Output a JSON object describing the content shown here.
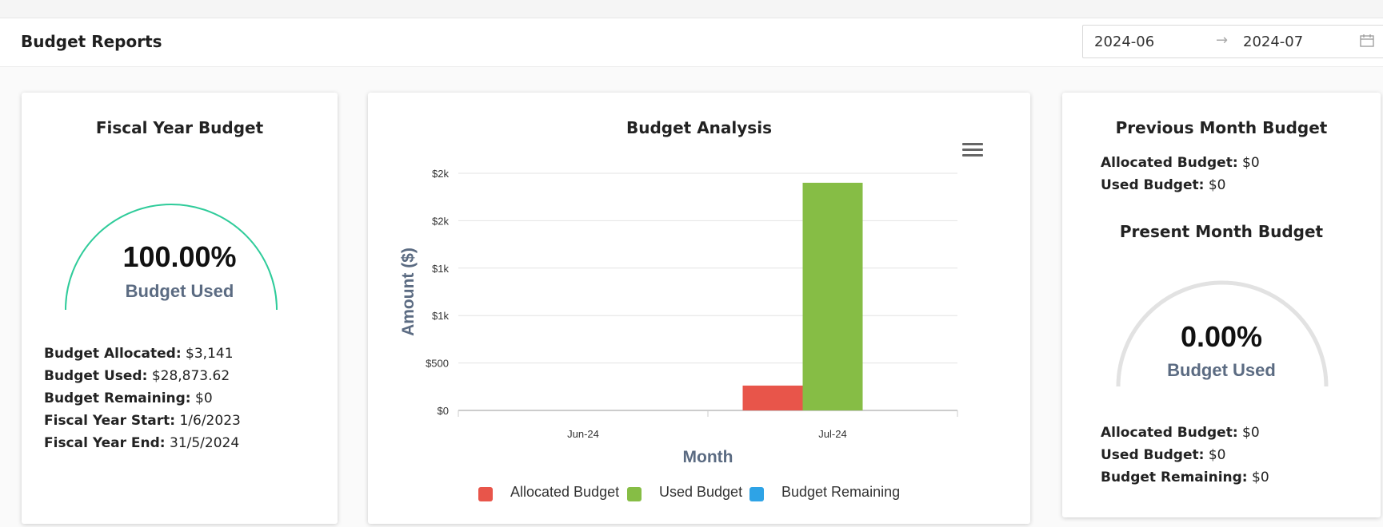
{
  "header": {
    "title": "Budget Reports",
    "date_start": "2024-06",
    "date_end": "2024-07",
    "arrow": "→",
    "calendar_icon": "calendar-icon"
  },
  "fiscal_card": {
    "title": "Fiscal Year Budget",
    "gauge_percent_text": "100.00%",
    "gauge_fraction": 1.0,
    "gauge_label": "Budget Used",
    "gauge_color": "#2ecc9a",
    "rows": [
      {
        "label": "Budget Allocated:",
        "value": "$3,141"
      },
      {
        "label": "Budget Used:",
        "value": "$28,873.62"
      },
      {
        "label": "Budget Remaining:",
        "value": "$0"
      },
      {
        "label": "Fiscal Year Start:",
        "value": "1/6/2023"
      },
      {
        "label": "Fiscal Year End:",
        "value": "31/5/2024"
      }
    ]
  },
  "analysis_card": {
    "title": "Budget Analysis",
    "menu_icon": "hamburger-menu-icon"
  },
  "chart_data": {
    "type": "bar",
    "title": "Budget Analysis",
    "xlabel": "Month",
    "ylabel": "Amount ($)",
    "categories": [
      "Jun-24",
      "Jul-24"
    ],
    "ylim": [
      0,
      2500
    ],
    "yticks": [
      0,
      500,
      1000,
      1500,
      2000,
      2500
    ],
    "ytick_labels": [
      "$0",
      "$500",
      "$1k",
      "$1k",
      "$2k",
      "$2k"
    ],
    "grid": true,
    "legend_position": "bottom",
    "series": [
      {
        "name": "Allocated Budget",
        "color": "#e8554a",
        "values": [
          0,
          262
        ]
      },
      {
        "name": "Used Budget",
        "color": "#86bd45",
        "values": [
          0,
          2400
        ]
      },
      {
        "name": "Budget Remaining",
        "color": "#2ea3e6",
        "values": [
          0,
          0
        ]
      }
    ]
  },
  "previous_card": {
    "title": "Previous Month Budget",
    "rows": [
      {
        "label": "Allocated Budget:",
        "value": "$0"
      },
      {
        "label": "Used Budget:",
        "value": "$0"
      }
    ]
  },
  "present_card": {
    "title": "Present Month Budget",
    "gauge_percent_text": "0.00%",
    "gauge_fraction": 0.0,
    "gauge_label": "Budget Used",
    "gauge_track_color": "#e2e2e2",
    "rows": [
      {
        "label": "Allocated Budget:",
        "value": "$0"
      },
      {
        "label": "Used Budget:",
        "value": "$0"
      },
      {
        "label": "Budget Remaining:",
        "value": "$0"
      }
    ]
  }
}
